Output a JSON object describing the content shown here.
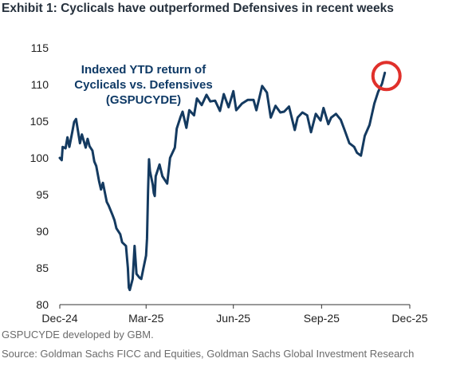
{
  "header": {
    "title": "Exhibit 1: Cyclicals have outperformed Defensives in recent weeks"
  },
  "footer": {
    "note": "GSPUCYDE developed by GBM.",
    "source": "Source: Goldman Sachs FICC and Equities, Goldman Sachs Global Investment Research"
  },
  "colors": {
    "line": "#143a60",
    "annotation_text": "#0f3a66",
    "highlight_circle": "#e0302b",
    "axis": "#333333"
  },
  "chart_data": {
    "type": "line",
    "annotation": [
      "Indexed YTD return of",
      "Cyclicals vs. Defensives",
      "(GSPUCYDE)"
    ],
    "x_tick_labels": [
      "Dec-24",
      "Mar-25",
      "Jun-25",
      "Sep-25",
      "Dec-25"
    ],
    "x_tick_dates": [
      "2024-12-31",
      "2025-03-31",
      "2025-06-30",
      "2025-09-30",
      "2025-12-31"
    ],
    "ylim": [
      80,
      115
    ],
    "yticks": [
      80,
      85,
      90,
      95,
      100,
      105,
      110,
      115
    ],
    "grid": false,
    "highlight": "latest value circled in red",
    "series": [
      {
        "x": [
          "2024-12-31",
          "2025-01-02",
          "2025-01-03",
          "2025-01-06",
          "2025-01-08",
          "2025-01-10",
          "2025-01-13",
          "2025-01-15",
          "2025-01-17",
          "2025-01-21",
          "2025-01-23",
          "2025-01-27",
          "2025-01-29",
          "2025-01-31",
          "2025-02-03",
          "2025-02-05",
          "2025-02-07",
          "2025-02-10",
          "2025-02-12",
          "2025-02-14",
          "2025-02-18",
          "2025-02-20",
          "2025-02-24",
          "2025-02-26",
          "2025-02-28",
          "2025-03-04",
          "2025-03-06",
          "2025-03-10",
          "2025-03-12",
          "2025-03-13",
          "2025-03-14",
          "2025-03-17",
          "2025-03-19",
          "2025-03-21",
          "2025-03-24",
          "2025-03-26",
          "2025-03-28",
          "2025-03-31",
          "2025-04-01",
          "2025-04-02",
          "2025-04-03",
          "2025-04-04",
          "2025-04-07",
          "2025-04-08",
          "2025-04-09",
          "2025-04-10",
          "2025-04-14",
          "2025-04-17",
          "2025-04-22",
          "2025-04-25",
          "2025-04-30",
          "2025-05-02",
          "2025-05-06",
          "2025-05-08",
          "2025-05-12",
          "2025-05-15",
          "2025-05-20",
          "2025-05-23",
          "2025-05-28",
          "2025-06-02",
          "2025-06-06",
          "2025-06-11",
          "2025-06-16",
          "2025-06-20",
          "2025-06-25",
          "2025-06-30",
          "2025-07-03",
          "2025-07-09",
          "2025-07-15",
          "2025-07-21",
          "2025-07-24",
          "2025-07-30",
          "2025-08-04",
          "2025-08-08",
          "2025-08-13",
          "2025-08-18",
          "2025-08-22",
          "2025-08-27",
          "2025-09-02",
          "2025-09-05",
          "2025-09-10",
          "2025-09-15",
          "2025-09-19",
          "2025-09-24",
          "2025-09-29",
          "2025-10-02",
          "2025-10-07",
          "2025-10-10",
          "2025-10-15",
          "2025-10-20",
          "2025-10-24",
          "2025-10-29",
          "2025-11-03",
          "2025-11-06",
          "2025-11-10",
          "2025-11-14",
          "2025-11-19",
          "2025-11-24",
          "2025-11-28",
          "2025-12-02",
          "2025-12-05"
        ],
        "values": [
          100.0,
          99.7,
          101.5,
          101.3,
          102.8,
          101.5,
          103.5,
          104.9,
          105.3,
          102.0,
          103.2,
          101.4,
          102.6,
          101.6,
          101.0,
          99.5,
          98.9,
          96.8,
          95.7,
          96.6,
          94.0,
          93.5,
          92.2,
          91.5,
          90.4,
          89.6,
          88.5,
          88.0,
          85.0,
          82.3,
          82.0,
          83.5,
          88.0,
          84.2,
          83.7,
          83.5,
          84.8,
          86.7,
          89.0,
          95.5,
          99.8,
          98.2,
          96.3,
          95.2,
          94.8,
          97.5,
          99.1,
          97.5,
          96.5,
          100.0,
          101.4,
          104.0,
          105.6,
          106.3,
          104.1,
          106.5,
          105.8,
          108.1,
          107.2,
          108.6,
          107.7,
          107.8,
          106.4,
          108.7,
          106.9,
          109.1,
          106.5,
          107.4,
          107.9,
          107.9,
          106.5,
          109.8,
          108.9,
          105.5,
          107.1,
          106.2,
          106.3,
          107.0,
          103.8,
          105.5,
          106.2,
          105.8,
          103.5,
          106.0,
          105.1,
          106.8,
          104.6,
          105.5,
          106.0,
          105.2,
          103.8,
          102.0,
          101.5,
          100.7,
          100.3,
          103.0,
          104.5,
          107.4,
          109.0,
          110.1,
          111.6
        ]
      }
    ]
  }
}
